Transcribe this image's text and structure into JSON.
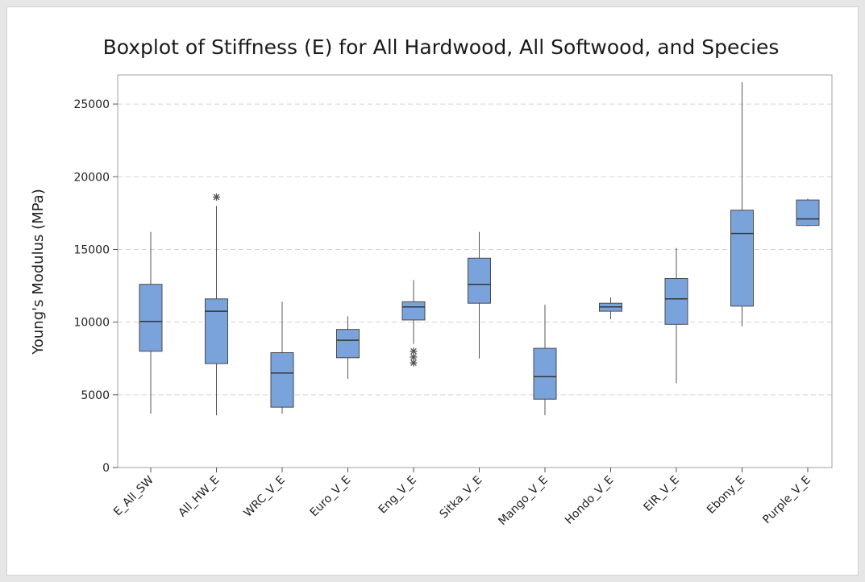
{
  "chart_data": {
    "type": "boxplot",
    "title": "Boxplot of Stiffness (E) for All Hardwood, All Softwood, and Species",
    "xlabel": "",
    "ylabel": "Young's Modulus (MPa)",
    "ylim": [
      0,
      27000
    ],
    "yticks": [
      0,
      5000,
      10000,
      15000,
      20000,
      25000
    ],
    "grid": true,
    "box_color": "#7ba3db",
    "box_edge_color": "#4a4a4a",
    "categories": [
      "E_All_SW",
      "All_HW_E",
      "WRC_V_E",
      "Euro_V_E",
      "Eng_V_E",
      "Sitka_V_E",
      "Mango_V_E",
      "Hondo_V_E",
      "EIR_V_E",
      "Ebony_E",
      "Purple_V_E"
    ],
    "boxes": [
      {
        "min": 3700,
        "q1": 8000,
        "median": 10050,
        "q3": 12600,
        "max": 16200,
        "outliers": []
      },
      {
        "min": 3600,
        "q1": 7150,
        "median": 10750,
        "q3": 11600,
        "max": 18000,
        "outliers": [
          18600
        ]
      },
      {
        "min": 3700,
        "q1": 4150,
        "median": 6500,
        "q3": 7900,
        "max": 11400,
        "outliers": []
      },
      {
        "min": 6100,
        "q1": 7550,
        "median": 8750,
        "q3": 9500,
        "max": 10400,
        "outliers": []
      },
      {
        "min": 8500,
        "q1": 10150,
        "median": 11050,
        "q3": 11400,
        "max": 12900,
        "outliers": [
          7200,
          7600,
          8000
        ]
      },
      {
        "min": 7500,
        "q1": 11300,
        "median": 12600,
        "q3": 14400,
        "max": 16200,
        "outliers": []
      },
      {
        "min": 3600,
        "q1": 4700,
        "median": 6250,
        "q3": 8200,
        "max": 11200,
        "outliers": []
      },
      {
        "min": 10200,
        "q1": 10750,
        "median": 11050,
        "q3": 11300,
        "max": 11700,
        "outliers": []
      },
      {
        "min": 5800,
        "q1": 9850,
        "median": 11600,
        "q3": 13000,
        "max": 15100,
        "outliers": []
      },
      {
        "min": 9700,
        "q1": 11100,
        "median": 16100,
        "q3": 17700,
        "max": 26500,
        "outliers": []
      },
      {
        "min": 16600,
        "q1": 16650,
        "median": 17100,
        "q3": 18400,
        "max": 18500,
        "outliers": []
      }
    ]
  }
}
